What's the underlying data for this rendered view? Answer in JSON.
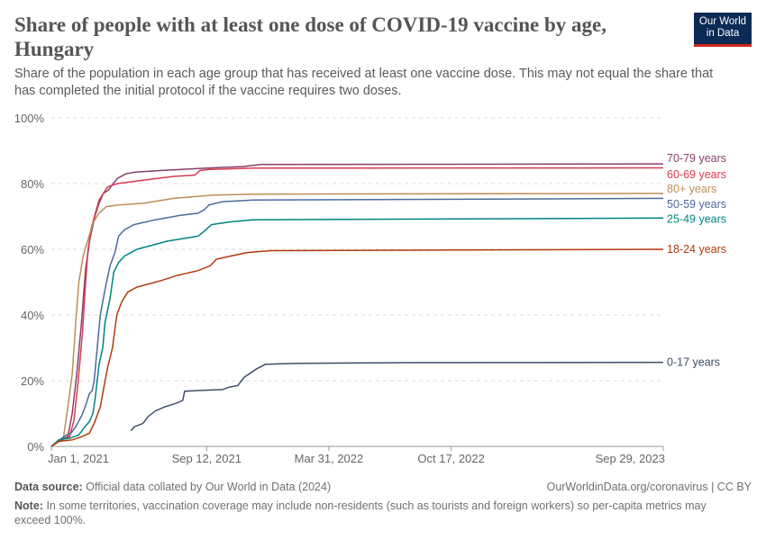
{
  "title": "Share of people with at least one dose of COVID-19 vaccine by age, Hungary",
  "subtitle": "Share of the population in each age group that has received at least one vaccine dose. This may not equal the share that has completed the initial protocol if the vaccine requires two doses.",
  "logo": {
    "line1": "Our World",
    "line2": "in Data"
  },
  "footer": {
    "source_label": "Data source:",
    "source": "Official data collated by Our World in Data (2024)",
    "url": "OurWorldinData.org/coronavirus | CC BY",
    "note_label": "Note:",
    "note": "In some territories, vaccination coverage may include non-residents (such as tourists and foreign workers) so per-capita metrics may exceed 100%."
  },
  "chart_data": {
    "type": "line",
    "xlabel": "",
    "ylabel": "",
    "x_unit": "days since Jan 1, 2021",
    "xlim": [
      0,
      1001
    ],
    "ylim": [
      0,
      100
    ],
    "yticks": [
      {
        "v": 0,
        "label": "0%"
      },
      {
        "v": 20,
        "label": "20%"
      },
      {
        "v": 40,
        "label": "40%"
      },
      {
        "v": 60,
        "label": "60%"
      },
      {
        "v": 80,
        "label": "80%"
      },
      {
        "v": 100,
        "label": "100%"
      }
    ],
    "xticks": [
      {
        "v": 0,
        "label": "Jan 1, 2021"
      },
      {
        "v": 254,
        "label": "Sep 12, 2021"
      },
      {
        "v": 454,
        "label": "Mar 31, 2022"
      },
      {
        "v": 654,
        "label": "Oct 17, 2022"
      },
      {
        "v": 1001,
        "label": "Sep 29, 2023"
      }
    ],
    "grid": true,
    "legend": "right, end-of-line labels",
    "series": [
      {
        "name": "70-79 years",
        "color": "#883f6a",
        "points": [
          [
            0,
            0
          ],
          [
            12,
            1.6
          ],
          [
            27,
            3
          ],
          [
            34,
            10
          ],
          [
            41,
            21
          ],
          [
            49,
            37
          ],
          [
            56,
            54
          ],
          [
            63,
            63
          ],
          [
            71,
            70
          ],
          [
            78,
            74
          ],
          [
            85,
            77
          ],
          [
            93,
            78
          ],
          [
            108,
            81.6
          ],
          [
            122,
            83
          ],
          [
            137,
            83.5
          ],
          [
            181,
            84
          ],
          [
            240,
            84.6
          ],
          [
            314,
            85.2
          ],
          [
            343,
            85.8
          ],
          [
            1001,
            86
          ]
        ]
      },
      {
        "name": "60-69 years",
        "color": "#d73c50",
        "points": [
          [
            0,
            0
          ],
          [
            12,
            1.5
          ],
          [
            30,
            3
          ],
          [
            37,
            8
          ],
          [
            44,
            20
          ],
          [
            51,
            35
          ],
          [
            56,
            50
          ],
          [
            60,
            60
          ],
          [
            66,
            67
          ],
          [
            72,
            71
          ],
          [
            78,
            75
          ],
          [
            85,
            77
          ],
          [
            92,
            79
          ],
          [
            108,
            80
          ],
          [
            150,
            81
          ],
          [
            200,
            82.2
          ],
          [
            235,
            82.6
          ],
          [
            243,
            84
          ],
          [
            260,
            84.3
          ],
          [
            330,
            84.7
          ],
          [
            1001,
            84.8
          ]
        ]
      },
      {
        "name": "80+ years",
        "color": "#be8e57",
        "points": [
          [
            0,
            0
          ],
          [
            12,
            1.5
          ],
          [
            20,
            3
          ],
          [
            27,
            12
          ],
          [
            34,
            22
          ],
          [
            40,
            38
          ],
          [
            45,
            50
          ],
          [
            52,
            58
          ],
          [
            60,
            63
          ],
          [
            68,
            68
          ],
          [
            78,
            71
          ],
          [
            90,
            73
          ],
          [
            110,
            73.5
          ],
          [
            150,
            74
          ],
          [
            200,
            75.5
          ],
          [
            245,
            76.2
          ],
          [
            265,
            76.5
          ],
          [
            330,
            76.8
          ],
          [
            1001,
            77
          ]
        ]
      },
      {
        "name": "50-59 years",
        "color": "#4c6a9c",
        "points": [
          [
            0,
            0
          ],
          [
            10,
            1.5
          ],
          [
            25,
            3.5
          ],
          [
            32,
            4
          ],
          [
            40,
            6
          ],
          [
            50,
            9.5
          ],
          [
            57,
            13
          ],
          [
            62,
            16
          ],
          [
            67,
            17
          ],
          [
            70,
            20
          ],
          [
            75,
            30
          ],
          [
            80,
            40
          ],
          [
            88,
            48
          ],
          [
            96,
            55
          ],
          [
            104,
            59
          ],
          [
            110,
            64
          ],
          [
            120,
            66
          ],
          [
            135,
            67.5
          ],
          [
            170,
            69
          ],
          [
            210,
            70.3
          ],
          [
            240,
            71
          ],
          [
            250,
            72
          ],
          [
            258,
            73.5
          ],
          [
            280,
            74.5
          ],
          [
            330,
            75
          ],
          [
            1001,
            75.5
          ]
        ]
      },
      {
        "name": "25-49 years",
        "color": "#00847e",
        "points": [
          [
            0,
            0
          ],
          [
            12,
            2
          ],
          [
            30,
            2.5
          ],
          [
            45,
            3.5
          ],
          [
            55,
            6
          ],
          [
            62,
            7.5
          ],
          [
            68,
            10
          ],
          [
            72,
            15
          ],
          [
            78,
            25
          ],
          [
            84,
            30
          ],
          [
            88,
            38
          ],
          [
            96,
            45
          ],
          [
            102,
            53
          ],
          [
            110,
            56
          ],
          [
            120,
            58
          ],
          [
            140,
            60
          ],
          [
            190,
            62.5
          ],
          [
            240,
            64
          ],
          [
            250,
            65.5
          ],
          [
            262,
            67.5
          ],
          [
            290,
            68.3
          ],
          [
            330,
            69
          ],
          [
            1001,
            69.5
          ]
        ]
      },
      {
        "name": "18-24 years",
        "color": "#b23a0b",
        "points": [
          [
            0,
            0
          ],
          [
            12,
            1.5
          ],
          [
            35,
            2
          ],
          [
            50,
            3
          ],
          [
            62,
            4
          ],
          [
            70,
            7
          ],
          [
            80,
            12
          ],
          [
            86,
            18
          ],
          [
            92,
            24
          ],
          [
            100,
            30
          ],
          [
            107,
            40
          ],
          [
            115,
            44
          ],
          [
            125,
            47
          ],
          [
            140,
            48.5
          ],
          [
            180,
            50.5
          ],
          [
            205,
            52
          ],
          [
            240,
            53.5
          ],
          [
            260,
            55
          ],
          [
            270,
            57
          ],
          [
            290,
            57.8
          ],
          [
            320,
            59
          ],
          [
            360,
            59.6
          ],
          [
            1001,
            60
          ]
        ]
      },
      {
        "name": "0-17 years",
        "color": "#3d4e66",
        "points": [
          [
            130,
            4.8
          ],
          [
            136,
            6
          ],
          [
            150,
            7
          ],
          [
            158,
            9
          ],
          [
            170,
            10.8
          ],
          [
            185,
            12
          ],
          [
            205,
            13.2
          ],
          [
            215,
            14
          ],
          [
            218,
            16.8
          ],
          [
            240,
            17
          ],
          [
            280,
            17.3
          ],
          [
            290,
            18
          ],
          [
            305,
            18.5
          ],
          [
            315,
            21
          ],
          [
            335,
            23.5
          ],
          [
            350,
            25
          ],
          [
            400,
            25.3
          ],
          [
            600,
            25.5
          ],
          [
            1001,
            25.6
          ]
        ]
      }
    ]
  }
}
